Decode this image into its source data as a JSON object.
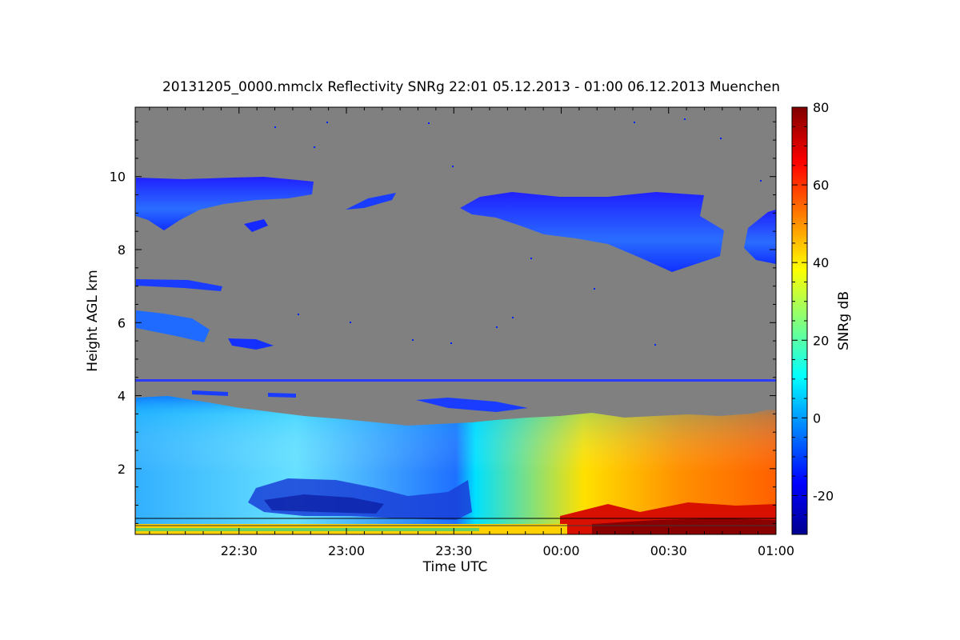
{
  "chart_data": {
    "type": "heatmap",
    "title": "20131205_0000.mmclx Reflectivity SNRg   22:01 05.12.2013 - 01:00 06.12.2013 Muenchen",
    "xlabel": "Time UTC",
    "ylabel": "Height AGL km",
    "colorbar_label": "SNRg dB",
    "x_ticks": [
      "22:30",
      "23:00",
      "23:30",
      "00:00",
      "00:30",
      "01:00"
    ],
    "y_ticks": [
      "2",
      "4",
      "6",
      "8",
      "10"
    ],
    "colorbar_ticks": [
      "-20",
      "0",
      "20",
      "40",
      "60",
      "80"
    ],
    "xlim": [
      "22:01",
      "01:00"
    ],
    "ylim": [
      0.2,
      11.9
    ],
    "clim": [
      -30,
      80
    ],
    "background_color": "#808080",
    "colormap": [
      "#00008f",
      "#0000ff",
      "#00ffff",
      "#ffff00",
      "#ff0000",
      "#800000"
    ],
    "layers": [
      {
        "name": "boundary_layer",
        "x_range": [
          "22:01",
          "01:00"
        ],
        "y_range": [
          0.2,
          3.8
        ],
        "snr_range": [
          -15,
          70
        ]
      },
      {
        "name": "cirrus_1",
        "x_range": [
          "22:01",
          "22:50"
        ],
        "y_range": [
          8.6,
          10.1
        ],
        "snr_range": [
          -20,
          0
        ]
      },
      {
        "name": "cirrus_2",
        "x_range": [
          "23:32",
          "01:00"
        ],
        "y_range": [
          7.5,
          9.7
        ],
        "snr_range": [
          -20,
          5
        ]
      },
      {
        "name": "mid_layer_1",
        "x_range": [
          "22:01",
          "22:25"
        ],
        "y_range": [
          6.9,
          7.2
        ],
        "snr_range": [
          -20,
          -10
        ]
      },
      {
        "name": "mid_layer_2",
        "x_range": [
          "22:01",
          "22:40"
        ],
        "y_range": [
          5.3,
          6.4
        ],
        "snr_range": [
          -20,
          0
        ]
      }
    ]
  }
}
